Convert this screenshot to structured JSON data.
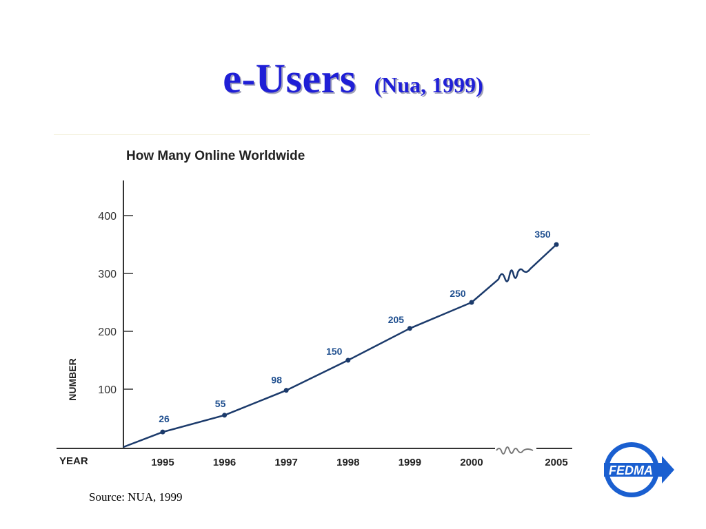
{
  "slide": {
    "title": "e-Users",
    "subtitle": "(Nua, 1999)",
    "source": "Source: NUA, 1999",
    "logo_text": "FEDMA"
  },
  "colors": {
    "title": "#1f1fd6",
    "line": "#1b3a6b",
    "data_label": "#1f4f8f",
    "axis": "#333333",
    "logo": "#1a5fd0"
  },
  "chart_data": {
    "type": "line",
    "title": "How Many Online Worldwide",
    "xlabel": "YEAR",
    "ylabel": "NUMBER",
    "ylim": [
      0,
      450
    ],
    "yticks": [
      100,
      200,
      300,
      400
    ],
    "categories": [
      "1995",
      "1996",
      "1997",
      "1998",
      "1999",
      "2000",
      "2005"
    ],
    "values": [
      26,
      55,
      98,
      150,
      205,
      250,
      350
    ],
    "data_labels": [
      "26",
      "55",
      "98",
      "150",
      "205",
      "250",
      "350"
    ],
    "axis_break": "between 2000 and 2005",
    "grid": false,
    "legend": "none"
  }
}
